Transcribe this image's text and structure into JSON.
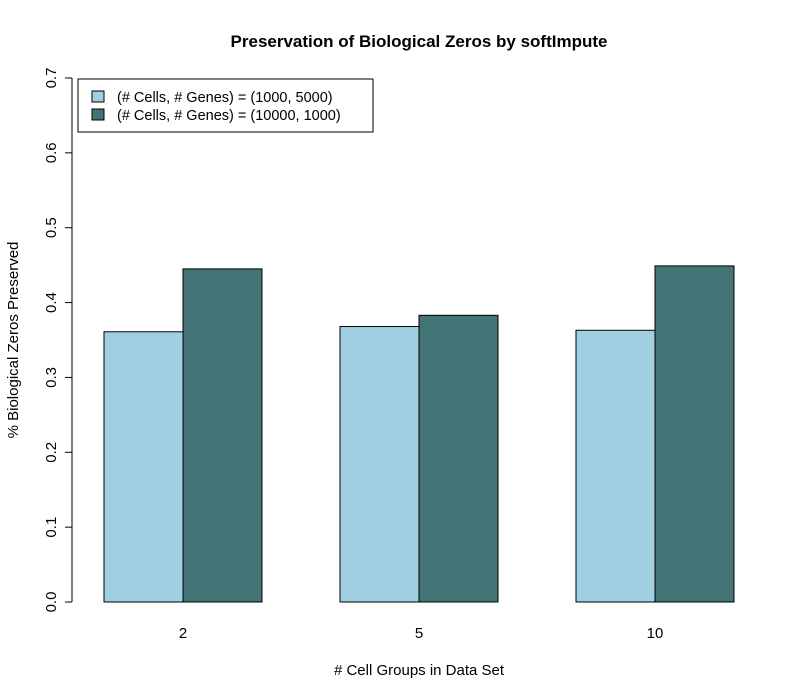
{
  "chart_data": {
    "type": "bar",
    "title": "Preservation of Biological Zeros by softImpute",
    "xlabel": "# Cell Groups in Data Set",
    "ylabel": "% Biological Zeros Preserved",
    "categories": [
      "2",
      "5",
      "10"
    ],
    "series": [
      {
        "name": "(# Cells, # Genes) = (1000, 5000)",
        "color": "#9fcfe0",
        "values": [
          0.361,
          0.368,
          0.363
        ]
      },
      {
        "name": "(# Cells, # Genes) = (10000, 1000)",
        "color": "#427476",
        "values": [
          0.445,
          0.383,
          0.449
        ]
      }
    ],
    "ylim": [
      0,
      0.7
    ],
    "yticks": [
      "0.0",
      "0.1",
      "0.2",
      "0.3",
      "0.4",
      "0.5",
      "0.6",
      "0.7"
    ],
    "grid": false,
    "legend_position": "top-left"
  }
}
